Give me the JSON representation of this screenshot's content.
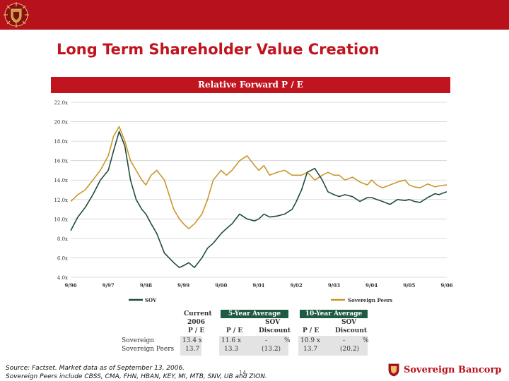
{
  "slide": {
    "title": "Long Term Shareholder Value Creation",
    "page_number": "14",
    "footnote_line1": "Source: Factset. Market data as of September 13, 2006.",
    "footnote_line2": "Sovereign Peers include CBSS, CMA, FHN, HBAN, KEY, MI, MTB, SNV, UB and ZION.",
    "brand_name": "Sovereign Bancorp",
    "brand_color": "#b7121c",
    "accent_color": "#c0141f",
    "logo_icon": "crest-icon"
  },
  "chart_data": {
    "type": "line",
    "title": "Relative Forward P / E",
    "x_ticks": [
      "9/96",
      "9/97",
      "9/98",
      "9/99",
      "9/00",
      "9/01",
      "9/02",
      "9/03",
      "9/04",
      "9/05",
      "9/06"
    ],
    "y_ticks": [
      "22.0x",
      "20.0x",
      "18.0x",
      "16.0x",
      "14.0x",
      "12.0x",
      "10.0x",
      "8.0x",
      "6.0x",
      "4.0x"
    ],
    "ylim": [
      4,
      22
    ],
    "grid": true,
    "legend_position": "bottom",
    "series": [
      {
        "name": "SOV",
        "color": "#1e4d3a",
        "x": [
          1996.71,
          1996.9,
          1997.1,
          1997.3,
          1997.5,
          1997.71,
          1997.85,
          1998.0,
          1998.15,
          1998.3,
          1998.45,
          1998.6,
          1998.71,
          1998.85,
          1999.0,
          1999.2,
          1999.45,
          1999.6,
          1999.71,
          1999.85,
          2000.0,
          2000.2,
          2000.35,
          2000.5,
          2000.71,
          2000.85,
          2001.0,
          2001.2,
          2001.4,
          2001.6,
          2001.71,
          2001.85,
          2002.0,
          2002.2,
          2002.4,
          2002.6,
          2002.71,
          2002.85,
          2003.0,
          2003.2,
          2003.4,
          2003.55,
          2003.71,
          2003.85,
          2004.0,
          2004.2,
          2004.4,
          2004.6,
          2004.71,
          2004.85,
          2005.0,
          2005.2,
          2005.4,
          2005.6,
          2005.71,
          2005.85,
          2006.0,
          2006.2,
          2006.4,
          2006.5,
          2006.71
        ],
        "y": [
          8.8,
          10.2,
          11.2,
          12.5,
          14.0,
          15.0,
          17.0,
          19.0,
          17.5,
          14.0,
          12.0,
          11.0,
          10.5,
          9.5,
          8.5,
          6.5,
          5.5,
          5.0,
          5.2,
          5.5,
          5.0,
          6.0,
          7.0,
          7.5,
          8.5,
          9.0,
          9.5,
          10.5,
          10.0,
          9.8,
          10.0,
          10.5,
          10.2,
          10.3,
          10.5,
          11.0,
          11.8,
          13.0,
          14.8,
          15.2,
          14.0,
          12.8,
          12.5,
          12.3,
          12.5,
          12.3,
          11.8,
          12.2,
          12.2,
          12.0,
          11.8,
          11.5,
          12.0,
          11.9,
          12.0,
          11.8,
          11.7,
          12.2,
          12.6,
          12.5,
          12.8
        ]
      },
      {
        "name": "Sovereign Peers",
        "color": "#c9972e",
        "x": [
          1996.71,
          1996.9,
          1997.1,
          1997.3,
          1997.5,
          1997.71,
          1997.85,
          1998.0,
          1998.15,
          1998.3,
          1998.45,
          1998.6,
          1998.71,
          1998.85,
          1999.0,
          1999.2,
          1999.45,
          1999.6,
          1999.71,
          1999.85,
          2000.0,
          2000.2,
          2000.35,
          2000.5,
          2000.71,
          2000.85,
          2001.0,
          2001.2,
          2001.4,
          2001.6,
          2001.71,
          2001.85,
          2002.0,
          2002.2,
          2002.4,
          2002.6,
          2002.71,
          2002.85,
          2003.0,
          2003.2,
          2003.4,
          2003.55,
          2003.71,
          2003.85,
          2004.0,
          2004.2,
          2004.4,
          2004.6,
          2004.71,
          2004.85,
          2005.0,
          2005.2,
          2005.4,
          2005.6,
          2005.71,
          2005.85,
          2006.0,
          2006.2,
          2006.4,
          2006.5,
          2006.71
        ],
        "y": [
          11.8,
          12.5,
          13.0,
          14.0,
          15.0,
          16.5,
          18.5,
          19.5,
          18.0,
          16.0,
          15.0,
          14.0,
          13.5,
          14.5,
          15.0,
          14.0,
          11.0,
          10.0,
          9.5,
          9.0,
          9.5,
          10.5,
          12.0,
          14.0,
          15.0,
          14.5,
          15.0,
          16.0,
          16.5,
          15.5,
          15.0,
          15.5,
          14.5,
          14.8,
          15.0,
          14.5,
          14.5,
          14.5,
          14.8,
          14.0,
          14.5,
          14.8,
          14.5,
          14.5,
          14.0,
          14.3,
          13.8,
          13.5,
          14.0,
          13.5,
          13.2,
          13.5,
          13.8,
          14.0,
          13.5,
          13.3,
          13.2,
          13.6,
          13.3,
          13.4,
          13.5
        ]
      }
    ]
  },
  "table": {
    "headers": {
      "current_line1": "Current",
      "current_line2": "2006",
      "current_line3": "P / E",
      "five_year": "5-Year Average",
      "ten_year": "10-Year Average",
      "sov_5": "SOV",
      "sov_10": "SOV",
      "pe_5": "P / E",
      "disc_5": "Discount",
      "pe_10": "P / E",
      "disc_10": "Discount"
    },
    "rows": [
      {
        "label": "Sovereign",
        "current": "13.4 x",
        "pe_5": "11.6 x",
        "disc_5": "-",
        "disc_5_unit": "%",
        "pe_10": "10.9 x",
        "disc_10": "-",
        "disc_10_unit": "%"
      },
      {
        "label": "Sovereign Peers",
        "current": "13.7",
        "pe_5": "13.3",
        "disc_5": "(13.2)",
        "disc_5_unit": "",
        "pe_10": "13.7",
        "disc_10": "(20.2)",
        "disc_10_unit": ""
      }
    ]
  }
}
